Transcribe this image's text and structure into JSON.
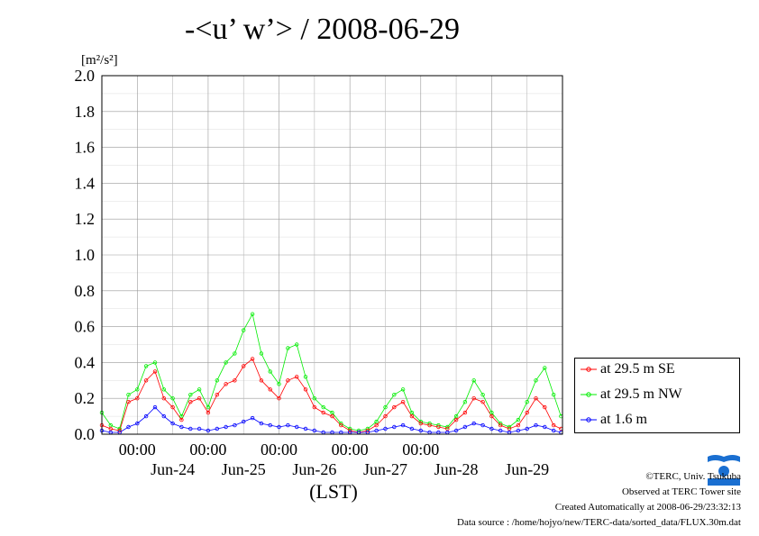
{
  "title": "-<u’ w’> / 2008-06-29",
  "unit_label": "[m²/s²]",
  "xlabel": "(LST)",
  "footer": {
    "copyright": "©TERC, Univ. Tsukuba",
    "observed": "Observed at TERC Tower site",
    "created": "Created Automatically at 2008-06-29/23:32:13",
    "source": "Data source : /home/hojyo/new/TERC-data/sorted_data/FLUX.30m.dat"
  },
  "colors": {
    "se": "#ff0000",
    "nw": "#00ee00",
    "low": "#0000ff"
  },
  "chart_data": {
    "type": "line",
    "title": "-<u’ w’> / 2008-06-29",
    "ylabel": "[m²/s²]",
    "xlabel": "(LST)",
    "ylim": [
      0,
      2.0
    ],
    "yticks": [
      "0.0",
      "0.2",
      "0.4",
      "0.6",
      "0.8",
      "1.0",
      "1.2",
      "1.4",
      "1.6",
      "1.8",
      "2.0"
    ],
    "xlim": [
      "2008-06-23 12:00",
      "2008-06-30 00:00"
    ],
    "time_ticks": [
      "00:00",
      "00:00",
      "00:00",
      "00:00",
      "00:00"
    ],
    "date_labels": [
      "Jun-24",
      "Jun-25",
      "Jun-26",
      "Jun-27",
      "Jun-28",
      "Jun-29"
    ],
    "grid": true,
    "legend_position": "right",
    "series": [
      {
        "name": "at 29.5 m SE",
        "x": [
          "2008-06-23 12:00",
          "2008-06-23 15:00",
          "2008-06-23 18:00",
          "2008-06-23 21:00",
          "2008-06-24 00:00",
          "2008-06-24 03:00",
          "2008-06-24 06:00",
          "2008-06-24 09:00",
          "2008-06-24 12:00",
          "2008-06-24 15:00",
          "2008-06-24 18:00",
          "2008-06-24 21:00",
          "2008-06-25 00:00",
          "2008-06-25 03:00",
          "2008-06-25 06:00",
          "2008-06-25 09:00",
          "2008-06-25 12:00",
          "2008-06-25 15:00",
          "2008-06-25 18:00",
          "2008-06-25 21:00",
          "2008-06-26 00:00",
          "2008-06-26 03:00",
          "2008-06-26 06:00",
          "2008-06-26 09:00",
          "2008-06-26 12:00",
          "2008-06-26 15:00",
          "2008-06-26 18:00",
          "2008-06-26 21:00",
          "2008-06-27 00:00",
          "2008-06-27 03:00",
          "2008-06-27 06:00",
          "2008-06-27 09:00",
          "2008-06-27 12:00",
          "2008-06-27 15:00",
          "2008-06-27 18:00",
          "2008-06-27 21:00",
          "2008-06-28 00:00",
          "2008-06-28 03:00",
          "2008-06-28 06:00",
          "2008-06-28 09:00",
          "2008-06-28 12:00",
          "2008-06-28 15:00",
          "2008-06-28 18:00",
          "2008-06-28 21:00",
          "2008-06-29 00:00",
          "2008-06-29 03:00",
          "2008-06-29 06:00",
          "2008-06-29 09:00",
          "2008-06-29 12:00",
          "2008-06-29 15:00",
          "2008-06-29 18:00",
          "2008-06-29 21:00",
          "2008-06-29 23:30"
        ],
        "values": [
          0.05,
          0.03,
          0.02,
          0.18,
          0.2,
          0.3,
          0.35,
          0.2,
          0.15,
          0.08,
          0.18,
          0.2,
          0.12,
          0.22,
          0.28,
          0.3,
          0.38,
          0.42,
          0.3,
          0.25,
          0.2,
          0.3,
          0.32,
          0.25,
          0.15,
          0.12,
          0.1,
          0.05,
          0.02,
          0.01,
          0.02,
          0.05,
          0.1,
          0.15,
          0.18,
          0.1,
          0.06,
          0.05,
          0.04,
          0.03,
          0.08,
          0.12,
          0.2,
          0.18,
          0.1,
          0.05,
          0.03,
          0.05,
          0.12,
          0.2,
          0.15,
          0.05,
          0.03
        ]
      },
      {
        "name": "at 29.5 m NW",
        "x": [
          "2008-06-23 12:00",
          "2008-06-23 15:00",
          "2008-06-23 18:00",
          "2008-06-23 21:00",
          "2008-06-24 00:00",
          "2008-06-24 03:00",
          "2008-06-24 06:00",
          "2008-06-24 09:00",
          "2008-06-24 12:00",
          "2008-06-24 15:00",
          "2008-06-24 18:00",
          "2008-06-24 21:00",
          "2008-06-25 00:00",
          "2008-06-25 03:00",
          "2008-06-25 06:00",
          "2008-06-25 09:00",
          "2008-06-25 12:00",
          "2008-06-25 15:00",
          "2008-06-25 18:00",
          "2008-06-25 21:00",
          "2008-06-26 00:00",
          "2008-06-26 03:00",
          "2008-06-26 06:00",
          "2008-06-26 09:00",
          "2008-06-26 12:00",
          "2008-06-26 15:00",
          "2008-06-26 18:00",
          "2008-06-26 21:00",
          "2008-06-27 00:00",
          "2008-06-27 03:00",
          "2008-06-27 06:00",
          "2008-06-27 09:00",
          "2008-06-27 12:00",
          "2008-06-27 15:00",
          "2008-06-27 18:00",
          "2008-06-27 21:00",
          "2008-06-28 00:00",
          "2008-06-28 03:00",
          "2008-06-28 06:00",
          "2008-06-28 09:00",
          "2008-06-28 12:00",
          "2008-06-28 15:00",
          "2008-06-28 18:00",
          "2008-06-28 21:00",
          "2008-06-29 00:00",
          "2008-06-29 03:00",
          "2008-06-29 06:00",
          "2008-06-29 09:00",
          "2008-06-29 12:00",
          "2008-06-29 15:00",
          "2008-06-29 18:00",
          "2008-06-29 21:00",
          "2008-06-29 23:30"
        ],
        "values": [
          0.12,
          0.05,
          0.03,
          0.22,
          0.25,
          0.38,
          0.4,
          0.25,
          0.2,
          0.1,
          0.22,
          0.25,
          0.15,
          0.3,
          0.4,
          0.45,
          0.58,
          0.67,
          0.45,
          0.35,
          0.28,
          0.48,
          0.5,
          0.32,
          0.2,
          0.15,
          0.12,
          0.06,
          0.03,
          0.02,
          0.03,
          0.07,
          0.15,
          0.22,
          0.25,
          0.12,
          0.07,
          0.06,
          0.05,
          0.04,
          0.1,
          0.18,
          0.3,
          0.22,
          0.12,
          0.06,
          0.04,
          0.08,
          0.18,
          0.3,
          0.37,
          0.22,
          0.1
        ]
      },
      {
        "name": "at 1.6 m",
        "x": [
          "2008-06-23 12:00",
          "2008-06-23 15:00",
          "2008-06-23 18:00",
          "2008-06-23 21:00",
          "2008-06-24 00:00",
          "2008-06-24 03:00",
          "2008-06-24 06:00",
          "2008-06-24 09:00",
          "2008-06-24 12:00",
          "2008-06-24 15:00",
          "2008-06-24 18:00",
          "2008-06-24 21:00",
          "2008-06-25 00:00",
          "2008-06-25 03:00",
          "2008-06-25 06:00",
          "2008-06-25 09:00",
          "2008-06-25 12:00",
          "2008-06-25 15:00",
          "2008-06-25 18:00",
          "2008-06-25 21:00",
          "2008-06-26 00:00",
          "2008-06-26 03:00",
          "2008-06-26 06:00",
          "2008-06-26 09:00",
          "2008-06-26 12:00",
          "2008-06-26 15:00",
          "2008-06-26 18:00",
          "2008-06-26 21:00",
          "2008-06-27 00:00",
          "2008-06-27 03:00",
          "2008-06-27 06:00",
          "2008-06-27 09:00",
          "2008-06-27 12:00",
          "2008-06-27 15:00",
          "2008-06-27 18:00",
          "2008-06-27 21:00",
          "2008-06-28 00:00",
          "2008-06-28 03:00",
          "2008-06-28 06:00",
          "2008-06-28 09:00",
          "2008-06-28 12:00",
          "2008-06-28 15:00",
          "2008-06-28 18:00",
          "2008-06-28 21:00",
          "2008-06-29 00:00",
          "2008-06-29 03:00",
          "2008-06-29 06:00",
          "2008-06-29 09:00",
          "2008-06-29 12:00",
          "2008-06-29 15:00",
          "2008-06-29 18:00",
          "2008-06-29 21:00",
          "2008-06-29 23:30"
        ],
        "values": [
          0.02,
          0.01,
          0.01,
          0.04,
          0.06,
          0.1,
          0.15,
          0.1,
          0.06,
          0.04,
          0.03,
          0.03,
          0.02,
          0.03,
          0.04,
          0.05,
          0.07,
          0.09,
          0.06,
          0.05,
          0.04,
          0.05,
          0.04,
          0.03,
          0.02,
          0.01,
          0.01,
          0.01,
          0.01,
          0.01,
          0.01,
          0.02,
          0.03,
          0.04,
          0.05,
          0.03,
          0.02,
          0.01,
          0.01,
          0.01,
          0.02,
          0.04,
          0.06,
          0.05,
          0.03,
          0.02,
          0.01,
          0.02,
          0.03,
          0.05,
          0.04,
          0.02,
          0.01
        ]
      }
    ]
  }
}
